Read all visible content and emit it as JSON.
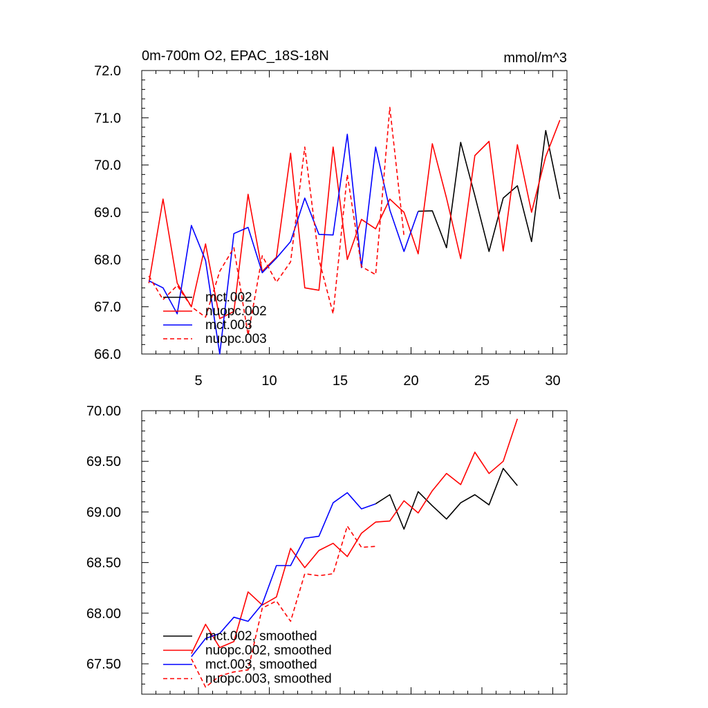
{
  "chart_data": [
    {
      "type": "line",
      "title": "0m-700m O2, EPAC_18S-18N",
      "units": "mmol/m^3",
      "xlim": [
        1,
        31
      ],
      "ylim": [
        66,
        72
      ],
      "x_ticks": [
        5,
        10,
        15,
        20,
        25,
        30
      ],
      "y_ticks": [
        "66.0",
        "67.0",
        "68.0",
        "69.0",
        "70.0",
        "71.0",
        "72.0"
      ],
      "legend": [
        "mct.002",
        "nuopc.002",
        "mct.003",
        "nuopc.003"
      ],
      "series": [
        {
          "name": "mct.002",
          "color": "#000000",
          "dashed": false,
          "x": [
            20.5,
            21.5,
            22.5,
            23.5,
            24.5,
            25.5,
            26.5,
            27.5,
            28.5,
            29.5,
            30.5
          ],
          "values": [
            69.02,
            69.03,
            68.25,
            70.48,
            69.35,
            68.17,
            69.3,
            69.56,
            68.38,
            70.73,
            69.28
          ]
        },
        {
          "name": "nuopc.002",
          "color": "#ff0000",
          "dashed": false,
          "x": [
            1.5,
            2.5,
            3.5,
            4.5,
            5.5,
            6.5,
            7.5,
            8.5,
            9.5,
            10.5,
            11.5,
            12.5,
            13.5,
            14.5,
            15.5,
            16.5,
            17.5,
            18.5,
            19.5,
            20.5,
            21.5,
            22.5,
            23.5,
            24.5,
            25.5,
            26.5,
            27.5,
            28.5,
            29.5,
            30.5
          ],
          "values": [
            67.5,
            69.28,
            67.5,
            67.0,
            68.33,
            66.75,
            66.9,
            69.38,
            67.75,
            68.05,
            70.25,
            67.4,
            67.35,
            70.38,
            68.0,
            68.85,
            68.65,
            69.28,
            69.0,
            68.12,
            70.45,
            69.3,
            68.02,
            70.2,
            70.5,
            68.18,
            70.43,
            69.0,
            70.18,
            70.95
          ]
        },
        {
          "name": "mct.003",
          "color": "#0000ff",
          "dashed": false,
          "x": [
            1.5,
            2.5,
            3.5,
            4.5,
            5.5,
            6.5,
            7.5,
            8.5,
            9.5,
            10.5,
            11.5,
            12.5,
            13.5,
            14.5,
            15.5,
            16.5,
            17.5,
            18.5,
            19.5,
            20.5
          ],
          "values": [
            67.55,
            67.4,
            66.85,
            68.72,
            67.98,
            66.0,
            68.55,
            68.68,
            67.72,
            68.03,
            68.38,
            69.3,
            68.53,
            68.52,
            70.65,
            67.83,
            70.38,
            69.05,
            68.17,
            69.02
          ]
        },
        {
          "name": "nuopc.003",
          "color": "#ff0000",
          "dashed": true,
          "x": [
            1.5,
            2.5,
            3.5,
            4.5,
            5.5,
            6.5,
            7.5,
            8.5,
            9.5,
            10.5,
            11.5,
            12.5,
            13.5,
            14.5,
            15.5,
            16.5,
            17.5,
            18.5,
            19.5
          ],
          "values": [
            67.65,
            67.15,
            67.45,
            67.0,
            66.78,
            67.75,
            68.25,
            66.4,
            68.08,
            67.52,
            67.95,
            70.38,
            68.0,
            66.85,
            69.8,
            67.85,
            67.68,
            71.22,
            68.5
          ]
        }
      ]
    },
    {
      "type": "line",
      "title": "",
      "xlim": [
        1,
        31
      ],
      "ylim": [
        67.2,
        70
      ],
      "x_ticks": [
        5,
        10,
        15,
        20,
        25,
        30
      ],
      "y_ticks": [
        "67.50",
        "68.00",
        "68.50",
        "69.00",
        "69.50",
        "70.00"
      ],
      "legend": [
        "mct.002, smoothed",
        "nuopc.002, smoothed",
        "mct.003, smoothed",
        "nuopc.003, smoothed"
      ],
      "series": [
        {
          "name": "mct.002, smoothed",
          "color": "#000000",
          "dashed": false,
          "x": [
            17.5,
            18.5,
            19.5,
            20.5,
            21.5,
            22.5,
            23.5,
            24.5,
            25.5,
            26.5,
            27.5
          ],
          "values": [
            69.08,
            69.17,
            68.83,
            69.2,
            69.06,
            68.93,
            69.09,
            69.17,
            69.07,
            69.43,
            69.26
          ]
        },
        {
          "name": "nuopc.002, smoothed",
          "color": "#ff0000",
          "dashed": false,
          "x": [
            4.5,
            5.5,
            6.5,
            7.5,
            8.5,
            9.5,
            10.5,
            11.5,
            12.5,
            13.5,
            14.5,
            15.5,
            16.5,
            17.5,
            18.5,
            19.5,
            20.5,
            21.5,
            22.5,
            23.5,
            24.5,
            25.5,
            26.5,
            27.5
          ],
          "values": [
            67.6,
            67.89,
            67.66,
            67.72,
            68.21,
            68.08,
            68.16,
            68.64,
            68.45,
            68.62,
            68.69,
            68.56,
            68.79,
            68.9,
            68.91,
            69.11,
            68.99,
            69.21,
            69.38,
            69.27,
            69.59,
            69.38,
            69.5,
            69.92
          ]
        },
        {
          "name": "mct.003, smoothed",
          "color": "#0000ff",
          "dashed": false,
          "x": [
            4.5,
            5.5,
            6.5,
            7.5,
            8.5,
            9.5,
            10.5,
            11.5,
            12.5,
            13.5,
            14.5,
            15.5,
            16.5,
            17.5
          ],
          "values": [
            67.57,
            67.75,
            67.8,
            67.96,
            67.92,
            68.09,
            68.47,
            68.47,
            68.74,
            68.76,
            69.09,
            69.19,
            69.03,
            69.08
          ]
        },
        {
          "name": "nuopc.003, smoothed",
          "color": "#ff0000",
          "dashed": true,
          "x": [
            4.5,
            5.5,
            6.5,
            7.5,
            8.5,
            9.5,
            10.5,
            11.5,
            12.5,
            13.5,
            14.5,
            15.5,
            16.5,
            17.5
          ],
          "values": [
            67.55,
            67.27,
            67.38,
            67.42,
            67.44,
            68.05,
            68.12,
            67.92,
            68.39,
            68.37,
            68.39,
            68.86,
            68.65,
            68.66
          ]
        }
      ]
    }
  ]
}
